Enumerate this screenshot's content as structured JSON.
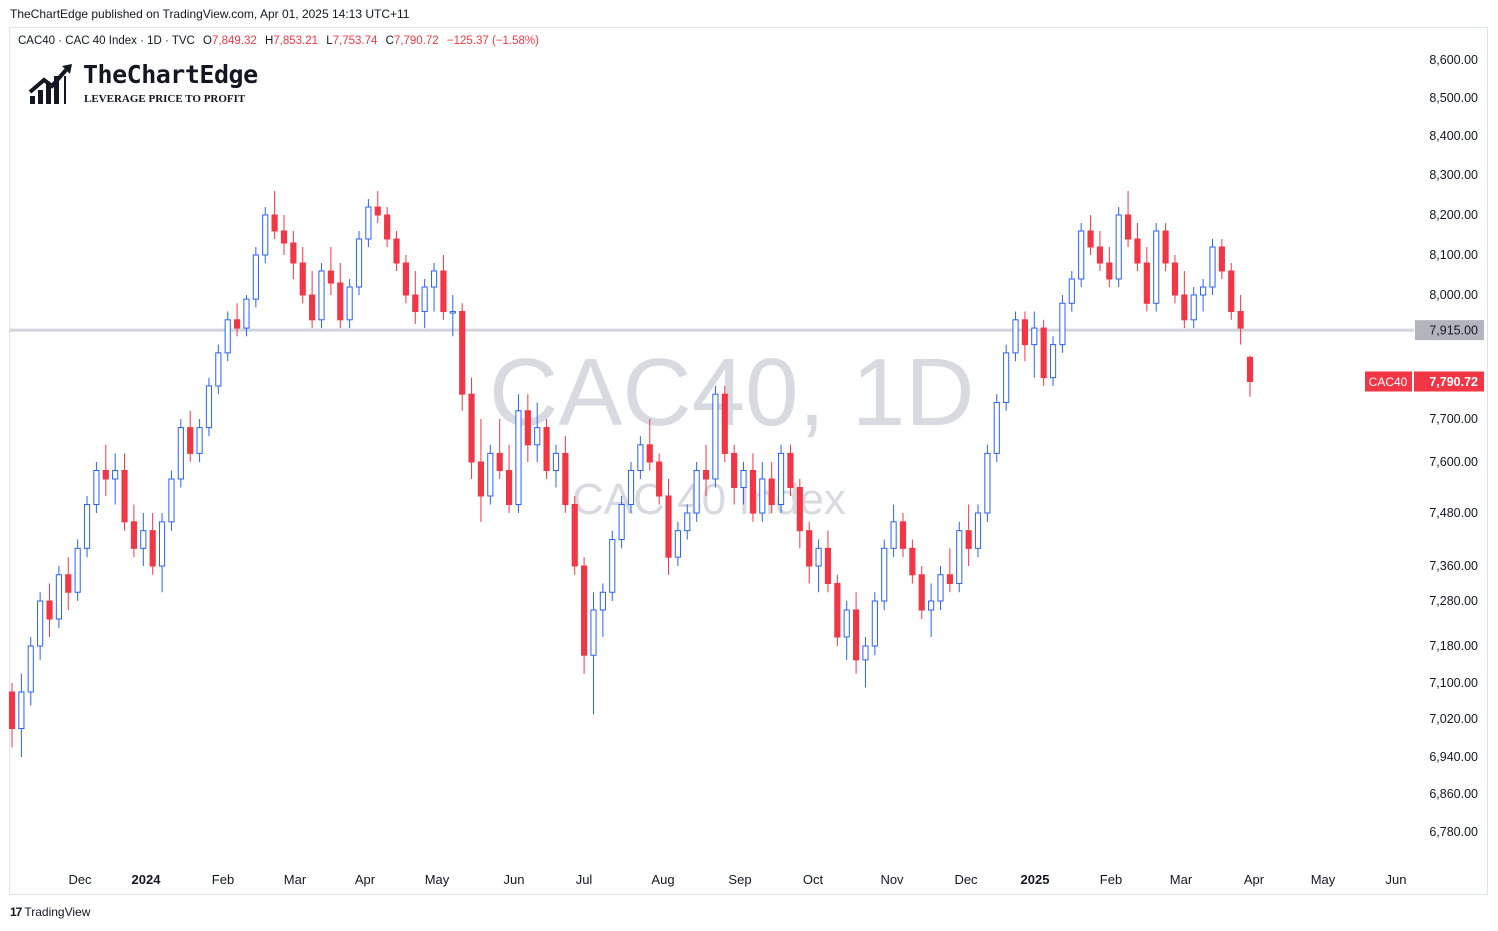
{
  "header": {
    "publish_line": "TheChartEdge published on TradingView.com, Apr 01, 2025 14:13 UTC+11"
  },
  "legend": {
    "symbol": "CAC40 · CAC 40 Index · 1D · TVC",
    "open_label": "O",
    "open": "7,849.32",
    "high_label": "H",
    "high": "7,853.21",
    "low_label": "L",
    "low": "7,753.74",
    "close_label": "C",
    "close": "7,790.72",
    "change": "−125.37 (−1.58%)"
  },
  "logo": {
    "name": "TheChartEdge",
    "tagline": "LEVERAGE PRICE TO PROFIT"
  },
  "watermark": {
    "title": "CAC40, 1D",
    "subtitle": "CAC 40 Index"
  },
  "footer": {
    "brand": "TradingView"
  },
  "colors": {
    "up": "#2962ff",
    "down": "#f23645",
    "level_line": "#d1d4dc",
    "level_badge": "#b2b5be"
  },
  "chart_data": {
    "type": "candlestick",
    "symbol": "CAC40",
    "y_ticks": [
      "8,600.00",
      "8,500.00",
      "8,400.00",
      "8,300.00",
      "8,200.00",
      "8,100.00",
      "8,000.00",
      "7,700.00",
      "7,600.00",
      "7,480.00",
      "7,360.00",
      "7,280.00",
      "7,180.00",
      "7,100.00",
      "7,020.00",
      "6,940.00",
      "6,860.00",
      "6,780.00"
    ],
    "x_ticks": [
      "Dec",
      "2024",
      "Feb",
      "Mar",
      "Apr",
      "May",
      "Jun",
      "Jul",
      "Aug",
      "Sep",
      "Oct",
      "Nov",
      "Dec",
      "2025",
      "Feb",
      "Mar",
      "Apr",
      "May",
      "Jun"
    ],
    "horizontal_level": {
      "value": 7915,
      "label": "7,915.00"
    },
    "last_price": {
      "symbol": "CAC40",
      "value": 7790.72,
      "label": "7,790.72"
    },
    "ohlc": [
      [
        7080,
        7100,
        6960,
        7000
      ],
      [
        7000,
        7120,
        6940,
        7080
      ],
      [
        7080,
        7200,
        7050,
        7180
      ],
      [
        7180,
        7300,
        7150,
        7280
      ],
      [
        7280,
        7320,
        7200,
        7240
      ],
      [
        7240,
        7360,
        7220,
        7340
      ],
      [
        7340,
        7380,
        7260,
        7300
      ],
      [
        7300,
        7420,
        7280,
        7400
      ],
      [
        7400,
        7520,
        7380,
        7500
      ],
      [
        7500,
        7600,
        7480,
        7580
      ],
      [
        7580,
        7640,
        7520,
        7560
      ],
      [
        7560,
        7620,
        7500,
        7580
      ],
      [
        7580,
        7620,
        7440,
        7460
      ],
      [
        7460,
        7500,
        7380,
        7400
      ],
      [
        7400,
        7480,
        7360,
        7440
      ],
      [
        7440,
        7480,
        7340,
        7360
      ],
      [
        7360,
        7480,
        7300,
        7460
      ],
      [
        7460,
        7580,
        7440,
        7560
      ],
      [
        7560,
        7700,
        7540,
        7680
      ],
      [
        7680,
        7720,
        7600,
        7620
      ],
      [
        7620,
        7700,
        7600,
        7680
      ],
      [
        7680,
        7800,
        7660,
        7780
      ],
      [
        7780,
        7880,
        7760,
        7860
      ],
      [
        7860,
        7960,
        7840,
        7940
      ],
      [
        7940,
        7980,
        7900,
        7920
      ],
      [
        7920,
        8000,
        7900,
        7990
      ],
      [
        7990,
        8120,
        7970,
        8100
      ],
      [
        8100,
        8220,
        8080,
        8200
      ],
      [
        8200,
        8260,
        8140,
        8160
      ],
      [
        8160,
        8200,
        8100,
        8130
      ],
      [
        8130,
        8160,
        8040,
        8080
      ],
      [
        8080,
        8120,
        7980,
        8000
      ],
      [
        8000,
        8060,
        7920,
        7940
      ],
      [
        7940,
        8080,
        7920,
        8060
      ],
      [
        8060,
        8120,
        8000,
        8030
      ],
      [
        8030,
        8080,
        7920,
        7940
      ],
      [
        7940,
        8040,
        7920,
        8020
      ],
      [
        8020,
        8160,
        8000,
        8140
      ],
      [
        8140,
        8240,
        8120,
        8220
      ],
      [
        8220,
        8260,
        8180,
        8200
      ],
      [
        8200,
        8220,
        8120,
        8140
      ],
      [
        8140,
        8160,
        8060,
        8080
      ],
      [
        8080,
        8100,
        7980,
        8000
      ],
      [
        8000,
        8060,
        7930,
        7960
      ],
      [
        7960,
        8040,
        7920,
        8020
      ],
      [
        8020,
        8080,
        7960,
        8060
      ],
      [
        8060,
        8100,
        7940,
        7960
      ],
      [
        7960,
        8000,
        7900,
        7960
      ],
      [
        7960,
        7980,
        7720,
        7760
      ],
      [
        7760,
        7800,
        7560,
        7600
      ],
      [
        7600,
        7700,
        7460,
        7520
      ],
      [
        7520,
        7640,
        7500,
        7620
      ],
      [
        7620,
        7700,
        7560,
        7580
      ],
      [
        7580,
        7640,
        7480,
        7500
      ],
      [
        7500,
        7760,
        7480,
        7720
      ],
      [
        7720,
        7760,
        7600,
        7640
      ],
      [
        7640,
        7740,
        7600,
        7680
      ],
      [
        7680,
        7700,
        7560,
        7580
      ],
      [
        7580,
        7640,
        7540,
        7620
      ],
      [
        7620,
        7660,
        7480,
        7500
      ],
      [
        7500,
        7520,
        7340,
        7360
      ],
      [
        7360,
        7380,
        7120,
        7160
      ],
      [
        7160,
        7300,
        7030,
        7260
      ],
      [
        7260,
        7320,
        7200,
        7300
      ],
      [
        7300,
        7440,
        7280,
        7420
      ],
      [
        7420,
        7520,
        7400,
        7500
      ],
      [
        7500,
        7600,
        7480,
        7580
      ],
      [
        7580,
        7660,
        7560,
        7640
      ],
      [
        7640,
        7700,
        7580,
        7600
      ],
      [
        7600,
        7620,
        7500,
        7520
      ],
      [
        7520,
        7560,
        7340,
        7380
      ],
      [
        7380,
        7460,
        7360,
        7440
      ],
      [
        7440,
        7500,
        7420,
        7480
      ],
      [
        7480,
        7600,
        7460,
        7580
      ],
      [
        7580,
        7640,
        7520,
        7560
      ],
      [
        7560,
        7780,
        7540,
        7760
      ],
      [
        7760,
        7780,
        7600,
        7620
      ],
      [
        7620,
        7640,
        7500,
        7540
      ],
      [
        7540,
        7600,
        7500,
        7580
      ],
      [
        7580,
        7620,
        7460,
        7480
      ],
      [
        7480,
        7600,
        7460,
        7560
      ],
      [
        7560,
        7600,
        7480,
        7500
      ],
      [
        7500,
        7640,
        7480,
        7620
      ],
      [
        7620,
        7640,
        7520,
        7540
      ],
      [
        7540,
        7560,
        7400,
        7440
      ],
      [
        7440,
        7460,
        7320,
        7360
      ],
      [
        7360,
        7420,
        7300,
        7400
      ],
      [
        7400,
        7440,
        7300,
        7320
      ],
      [
        7320,
        7340,
        7180,
        7200
      ],
      [
        7200,
        7280,
        7150,
        7260
      ],
      [
        7260,
        7300,
        7120,
        7150
      ],
      [
        7150,
        7200,
        7090,
        7180
      ],
      [
        7180,
        7300,
        7160,
        7280
      ],
      [
        7280,
        7420,
        7260,
        7400
      ],
      [
        7400,
        7500,
        7380,
        7460
      ],
      [
        7460,
        7480,
        7380,
        7400
      ],
      [
        7400,
        7420,
        7320,
        7340
      ],
      [
        7340,
        7360,
        7240,
        7260
      ],
      [
        7260,
        7320,
        7200,
        7280
      ],
      [
        7280,
        7360,
        7260,
        7340
      ],
      [
        7340,
        7400,
        7300,
        7320
      ],
      [
        7320,
        7460,
        7300,
        7440
      ],
      [
        7440,
        7500,
        7360,
        7400
      ],
      [
        7400,
        7500,
        7380,
        7480
      ],
      [
        7480,
        7640,
        7460,
        7620
      ],
      [
        7620,
        7760,
        7600,
        7740
      ],
      [
        7740,
        7880,
        7720,
        7860
      ],
      [
        7860,
        7960,
        7840,
        7940
      ],
      [
        7940,
        7960,
        7840,
        7880
      ],
      [
        7880,
        7960,
        7800,
        7920
      ],
      [
        7920,
        7940,
        7780,
        7800
      ],
      [
        7800,
        7900,
        7780,
        7880
      ],
      [
        7880,
        8000,
        7860,
        7980
      ],
      [
        7980,
        8060,
        7960,
        8040
      ],
      [
        8040,
        8180,
        8020,
        8160
      ],
      [
        8160,
        8200,
        8100,
        8120
      ],
      [
        8120,
        8160,
        8060,
        8080
      ],
      [
        8080,
        8120,
        8020,
        8040
      ],
      [
        8040,
        8220,
        8020,
        8200
      ],
      [
        8200,
        8260,
        8120,
        8140
      ],
      [
        8140,
        8180,
        8060,
        8080
      ],
      [
        8080,
        8120,
        7960,
        7980
      ],
      [
        7980,
        8180,
        7960,
        8160
      ],
      [
        8160,
        8180,
        8060,
        8080
      ],
      [
        8080,
        8100,
        7980,
        8000
      ],
      [
        8000,
        8060,
        7920,
        7940
      ],
      [
        7940,
        8020,
        7920,
        8000
      ],
      [
        8000,
        8040,
        7960,
        8020
      ],
      [
        8020,
        8140,
        8000,
        8120
      ],
      [
        8120,
        8140,
        8040,
        8060
      ],
      [
        8060,
        8080,
        7940,
        7960
      ],
      [
        7960,
        8000,
        7880,
        7920
      ],
      [
        7849.32,
        7853.21,
        7753.74,
        7790.72
      ]
    ]
  }
}
